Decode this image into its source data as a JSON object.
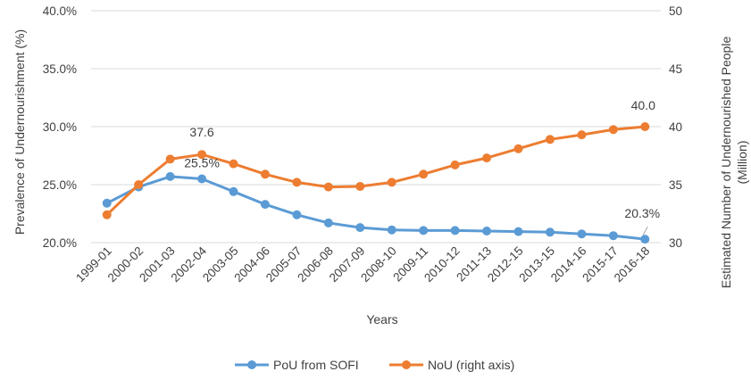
{
  "chart_data": {
    "type": "line",
    "title": "",
    "xlabel": "Years",
    "ylabel": "Prevalence of Undernourishment (%)",
    "y2label_lines": [
      "Estimated Number of Undernourished People",
      "(Million)"
    ],
    "categories": [
      "1999-01",
      "2000-02",
      "2001-03",
      "2002-04",
      "2003-05",
      "2004-06",
      "2005-07",
      "2006-08",
      "2007-09",
      "2008-10",
      "2009-11",
      "2010-12",
      "2011-13",
      "2012-15",
      "2013-15",
      "2014-16",
      "2015-17",
      "2016-18"
    ],
    "ylim": [
      20,
      40
    ],
    "y_ticks": [
      "20.0%",
      "25.0%",
      "30.0%",
      "35.0%",
      "40.0%"
    ],
    "y2lim": [
      30,
      50
    ],
    "y2_ticks": [
      "30",
      "35",
      "40",
      "45",
      "50"
    ],
    "grid": true,
    "legend_position": "bottom",
    "series": [
      {
        "name": "PoU from SOFI",
        "axis": "left",
        "color": "#5b9bd5",
        "values": [
          23.4,
          24.8,
          25.7,
          25.5,
          24.4,
          23.3,
          22.4,
          21.7,
          21.3,
          21.1,
          21.05,
          21.05,
          21.0,
          20.95,
          20.9,
          20.75,
          20.6,
          20.3
        ],
        "data_labels": [
          {
            "index": 3,
            "text": "25.5%"
          },
          {
            "index": 17,
            "text": "20.3%"
          }
        ]
      },
      {
        "name": "NoU (right axis)",
        "axis": "right",
        "color": "#ed7d31",
        "values": [
          32.4,
          35.0,
          37.2,
          37.6,
          36.8,
          35.9,
          35.2,
          34.8,
          34.85,
          35.2,
          35.9,
          36.7,
          37.3,
          38.1,
          38.9,
          39.3,
          39.75,
          40.0
        ],
        "data_labels": [
          {
            "index": 3,
            "text": "37.6"
          },
          {
            "index": 17,
            "text": "40.0"
          }
        ]
      }
    ]
  }
}
